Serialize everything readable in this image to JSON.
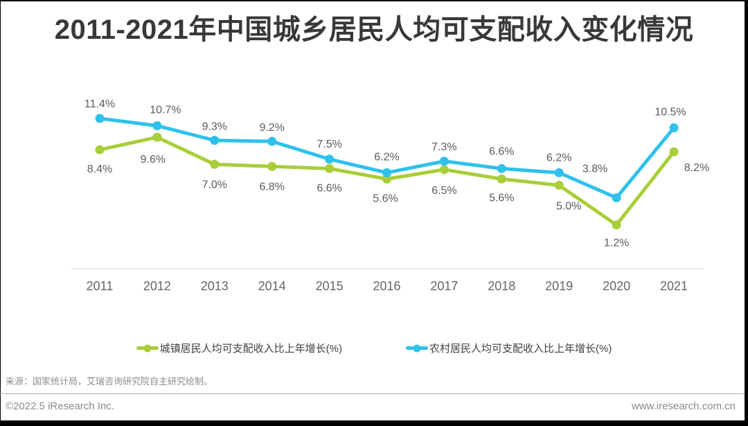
{
  "title": "2011-2021年中国城乡居民人均可支配收入变化情况",
  "source_note": "来源：国家统计局，艾瑞咨询研究院自主研究绘制。",
  "footer": {
    "copyright": "©2022.5 iResearch Inc.",
    "website": "www.iresearch.com.cn"
  },
  "colors": {
    "urban_green": "#A8CE38",
    "rural_blue": "#2EC1EC",
    "title_text": "#383838",
    "data_label": "#5A5A5A",
    "axis_line": "#CBCBCB",
    "tick_text": "#666666",
    "muted_text": "#8A8A8A",
    "frame_black": "#000000"
  },
  "chart_data": {
    "type": "line",
    "title": "2011-2021年中国城乡居民人均可支配收入变化情况",
    "categories": [
      "2011",
      "2012",
      "2013",
      "2014",
      "2015",
      "2016",
      "2017",
      "2018",
      "2019",
      "2020",
      "2021"
    ],
    "series": [
      {
        "name": "城镇居民人均可支配收入比上年增长(%)",
        "color": "#A8CE38",
        "values": [
          8.4,
          9.6,
          7.0,
          6.8,
          6.6,
          5.6,
          6.5,
          5.6,
          5.0,
          1.2,
          8.2
        ],
        "label_side": "below",
        "label_offsets": [
          [
            0,
            33
          ],
          [
            -6,
            37
          ],
          [
            0,
            34
          ],
          [
            0,
            34
          ],
          [
            0,
            33
          ],
          [
            -2,
            33
          ],
          [
            0,
            35
          ],
          [
            0,
            32
          ],
          [
            14,
            35
          ],
          [
            0,
            31
          ],
          [
            33,
            28
          ]
        ]
      },
      {
        "name": "农村居民人均可支配收入比上年增长(%)",
        "color": "#2EC1EC",
        "values": [
          11.4,
          10.7,
          9.3,
          9.2,
          7.5,
          6.2,
          7.3,
          6.6,
          6.2,
          3.8,
          10.5
        ],
        "label_side": "above",
        "label_offsets": [
          [
            0,
            -16
          ],
          [
            12,
            -18
          ],
          [
            0,
            -15
          ],
          [
            0,
            -15
          ],
          [
            0,
            -17
          ],
          [
            0,
            -18
          ],
          [
            0,
            -16
          ],
          [
            0,
            -20
          ],
          [
            0,
            -17
          ],
          [
            -31,
            -37
          ],
          [
            -5,
            -18
          ]
        ]
      }
    ],
    "value_suffix": "%",
    "xlabel": "",
    "ylabel": "",
    "ylim": [
      -3,
      13
    ],
    "grid": false,
    "legend_position": "bottom"
  }
}
